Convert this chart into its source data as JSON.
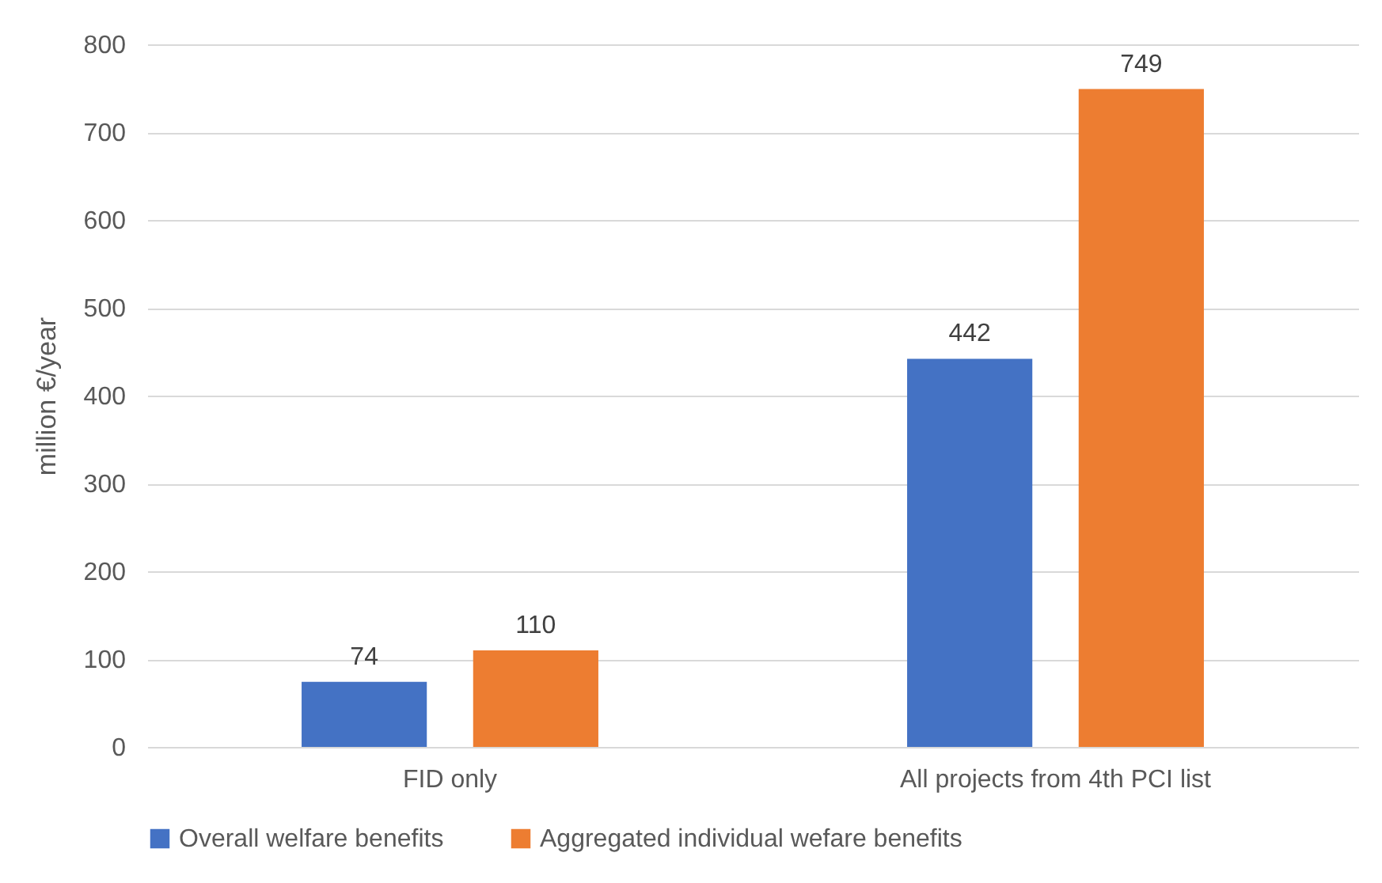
{
  "chart_data": {
    "type": "bar",
    "ylabel": "million €/year",
    "categories": [
      "FID only",
      "All projects from 4th PCI list"
    ],
    "series": [
      {
        "name": "Overall welfare benefits",
        "color": "#4472c4",
        "values": [
          74,
          442
        ]
      },
      {
        "name": "Aggregated individual wefare benefits",
        "color": "#ed7d31",
        "values": [
          110,
          749
        ]
      }
    ],
    "ylim": [
      0,
      800
    ],
    "yticks": [
      0,
      100,
      200,
      300,
      400,
      500,
      600,
      700,
      800
    ],
    "grid": "y",
    "legend": "bottom",
    "data_labels": true
  }
}
